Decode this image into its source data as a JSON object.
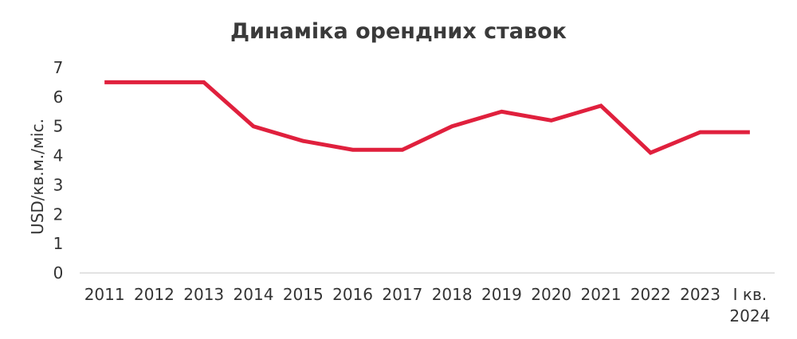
{
  "chart_data": {
    "type": "line",
    "title": "Динаміка орендних ставок",
    "xlabel": "",
    "ylabel": "USD/кв.м./міс.",
    "categories": [
      "2011",
      "2012",
      "2013",
      "2014",
      "2015",
      "2016",
      "2017",
      "2018",
      "2019",
      "2020",
      "2021",
      "2022",
      "2023",
      "I кв. 2024"
    ],
    "series": [
      {
        "values": [
          6.5,
          6.5,
          6.5,
          5.0,
          4.5,
          4.2,
          4.2,
          5.0,
          5.5,
          5.2,
          5.7,
          4.1,
          4.8,
          4.8
        ]
      }
    ],
    "ylim": [
      0,
      7
    ],
    "yticks": [
      0,
      1,
      2,
      3,
      4,
      5,
      6,
      7
    ],
    "grid": false,
    "legend": "none",
    "line_color": "#e0203d",
    "axis_color": "#d9d9d9"
  }
}
